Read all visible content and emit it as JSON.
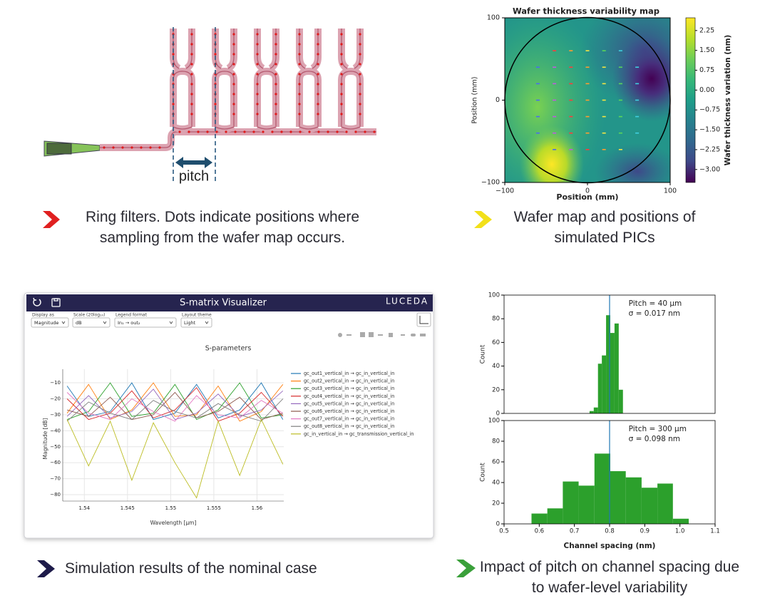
{
  "ring_filter": {
    "pitch_label": "pitch"
  },
  "captions": [
    "Ring filters. Dots indicate positions where sampling from the wafer map occurs.",
    "Wafer map and positions of simulated PICs",
    "Simulation results of the nominal case",
    "Impact of pitch on channel spacing due to wafer-level variability"
  ],
  "app": {
    "title": "S-matrix Visualizer",
    "brand": "LUCEDA",
    "controls": [
      {
        "label": "Display as",
        "value": "Magnitude"
      },
      {
        "label": "Scale (20log₁₀)",
        "value": "dB"
      },
      {
        "label": "Legend format",
        "value": "In₁ → out₂"
      },
      {
        "label": "Layout theme",
        "value": "Light"
      }
    ]
  },
  "chart_data": [
    {
      "type": "heatmap",
      "title": "Wafer thickness variability map",
      "xlabel": "Position (mm)",
      "ylabel": "Position (mm)",
      "xlim": [
        -100,
        100
      ],
      "ylim": [
        -100,
        100
      ],
      "xticks": [
        {
          "value": -100,
          "label": "−100"
        },
        0,
        100
      ],
      "yticks": [
        {
          "value": -100,
          "label": "−100"
        },
        0,
        100
      ],
      "colorbar_label": "Wafer thickness variation (nm)",
      "clim": [
        -3.49,
        2.73
      ],
      "cticks": [
        2.25,
        {
          "value": 1.5,
          "label": "1.50"
        },
        0.75,
        {
          "value": 0,
          "label": "0.00"
        },
        {
          "value": -0.75,
          "label": "−0.75"
        },
        {
          "value": -1.5,
          "label": "−1.50"
        },
        {
          "value": -2.25,
          "label": "−2.25"
        },
        {
          "value": -3,
          "label": "−3.00"
        }
      ],
      "points": {
        "x": [
          -40,
          -20,
          0,
          20,
          40,
          -60,
          -40,
          -20,
          0,
          20,
          40,
          60,
          -60,
          -40,
          -20,
          0,
          20,
          40,
          60,
          -60,
          -40,
          -20,
          0,
          20,
          40,
          60,
          -60,
          -40,
          -20,
          0,
          20,
          40,
          60,
          -60,
          -40,
          -20,
          0,
          20,
          40,
          60,
          -40,
          -20,
          0,
          20,
          40
        ],
        "y": [
          60,
          60,
          60,
          60,
          60,
          40,
          40,
          40,
          40,
          40,
          40,
          40,
          20,
          20,
          20,
          20,
          20,
          20,
          20,
          0,
          0,
          0,
          0,
          0,
          0,
          0,
          -20,
          -20,
          -20,
          -20,
          -20,
          -20,
          -20,
          -40,
          -40,
          -40,
          -40,
          -40,
          -40,
          -40,
          -60,
          -60,
          -60,
          -60,
          -60
        ]
      }
    },
    {
      "type": "line",
      "title": "S-parameters",
      "xlabel": "Wavelength [µm]",
      "ylabel": "Magnitude [dB]",
      "x": [
        1.538,
        1.5405,
        1.543,
        1.5455,
        1.548,
        1.5505,
        1.553,
        1.5555,
        1.558,
        1.5605,
        1.563
      ],
      "xlim": [
        1.5375,
        1.5631
      ],
      "ylim": [
        -84,
        -1.5
      ],
      "xticks": [
        1.54,
        1.545,
        1.55,
        1.555,
        1.56
      ],
      "yticks": [
        {
          "value": -10,
          "label": "−10"
        },
        {
          "value": -20,
          "label": "−20"
        },
        {
          "value": -30,
          "label": "−30"
        },
        {
          "value": -40,
          "label": "−40"
        },
        {
          "value": -50,
          "label": "−50"
        },
        {
          "value": -60,
          "label": "−60"
        },
        {
          "value": -70,
          "label": "−70"
        },
        {
          "value": -80,
          "label": "−80"
        }
      ],
      "grid": true,
      "series": [
        {
          "name": "gc_out1_vertical_in → gc_in_vertical_in",
          "color": "#1f77b4",
          "values": [
            -12,
            -31,
            -28,
            -10,
            -33,
            -29,
            -11,
            -32,
            -27,
            -10,
            -33
          ]
        },
        {
          "name": "gc_out2_vertical_in → gc_in_vertical_in",
          "color": "#ff7f0e",
          "values": [
            -29,
            -11,
            -33,
            -27,
            -10,
            -31,
            -30,
            -12,
            -34,
            -28,
            -11
          ]
        },
        {
          "name": "gc_out3_vertical_in → gc_in_vertical_in",
          "color": "#2ca02c",
          "values": [
            -33,
            -28,
            -10,
            -31,
            -29,
            -11,
            -33,
            -27,
            -10,
            -32,
            -30
          ]
        },
        {
          "name": "gc_out4_vertical_in → gc_in_vertical_in",
          "color": "#d62728",
          "values": [
            -20,
            -33,
            -29,
            -15,
            -32,
            -27,
            -13,
            -34,
            -29,
            -16,
            -31
          ]
        },
        {
          "name": "gc_out5_vertical_in → gc_in_vertical_in",
          "color": "#9467bd",
          "values": [
            -31,
            -18,
            -32,
            -28,
            -14,
            -33,
            -29,
            -17,
            -31,
            -27,
            -15
          ]
        },
        {
          "name": "gc_out6_vertical_in → gc_in_vertical_in",
          "color": "#8c564b",
          "values": [
            -27,
            -31,
            -19,
            -33,
            -30,
            -16,
            -32,
            -28,
            -19,
            -33,
            -29
          ]
        },
        {
          "name": "gc_out7_vertical_in → gc_in_vertical_in",
          "color": "#e377c2",
          "values": [
            -16,
            -29,
            -33,
            -20,
            -28,
            -34,
            -18,
            -30,
            -32,
            -21,
            -29
          ]
        },
        {
          "name": "gc_out8_vertical_in → gc_in_vertical_in",
          "color": "#7f7f7f",
          "values": [
            -34,
            -22,
            -29,
            -33,
            -21,
            -28,
            -32,
            -23,
            -30,
            -34,
            -20
          ]
        },
        {
          "name": "gc_in_vertical_in → gc_transmission_vertical_in",
          "color": "#bcbd22",
          "values": [
            -33,
            -62,
            -34,
            -71,
            -35,
            -60,
            -82,
            -34,
            -68,
            -33,
            -61
          ]
        }
      ]
    },
    {
      "type": "histogram",
      "ylabel": "Count",
      "annotations": [
        "Pitch = 40 µm",
        "σ = 0.017 nm"
      ],
      "bins": [
        0.743,
        0.755,
        0.767,
        0.778,
        0.79,
        0.802,
        0.814,
        0.826,
        0.838
      ],
      "values": [
        2,
        5,
        42,
        49,
        83,
        68,
        76,
        20
      ],
      "color": "#2ca02c",
      "vline": 0.8,
      "vline_color": "#1f77b4",
      "xlim": [
        0.5,
        1.1
      ],
      "ylim": [
        0,
        100
      ],
      "yticks": [
        0,
        20,
        40,
        60,
        80,
        100
      ]
    },
    {
      "type": "histogram",
      "ylabel": "Count",
      "xlabel": "Channel spacing (nm)",
      "annotations": [
        "Pitch = 300 µm",
        "σ = 0.098 nm"
      ],
      "bins": [
        0.578,
        0.623,
        0.667,
        0.712,
        0.757,
        0.802,
        0.846,
        0.891,
        0.936,
        0.98,
        1.025
      ],
      "values": [
        10,
        15,
        41,
        37,
        68,
        51,
        45,
        35,
        39,
        5
      ],
      "color": "#2ca02c",
      "vline": 0.8,
      "vline_color": "#1f77b4",
      "xlim": [
        0.5,
        1.1
      ],
      "ylim": [
        0,
        100
      ],
      "yticks": [
        0,
        20,
        40,
        60,
        80,
        100
      ],
      "xticks": [
        0.5,
        0.6,
        0.7,
        0.8,
        0.9,
        {
          "value": 1,
          "label": "1.0"
        },
        1.1
      ]
    }
  ]
}
